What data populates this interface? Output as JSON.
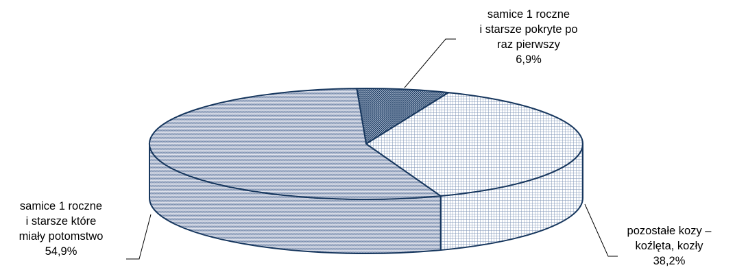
{
  "chart_data": {
    "type": "pie",
    "title": "",
    "categories": [
      "samice 1 roczne i starsze które miały potomstwo",
      "pozostałe kozy – koźlęta, kozły",
      "samice 1 roczne i starsze pokryte po raz pierwszy"
    ],
    "values": [
      54.9,
      38.2,
      6.9
    ],
    "unit": "%",
    "legend": "none",
    "labels": [
      {
        "lines": [
          "samice 1 roczne",
          "i starsze które",
          "miały potomstwo"
        ],
        "value_text": "54,9%"
      },
      {
        "lines": [
          "pozostałe kozy –",
          "koźlęta, kozły"
        ],
        "value_text": "38,2%"
      },
      {
        "lines": [
          "samice 1 roczne",
          "i starsze pokryte po",
          "raz pierwszy"
        ],
        "value_text": "6,9%"
      }
    ],
    "colors": [
      "#dcdce4",
      "#ffffff",
      "#a8b8cf"
    ],
    "edge_color": "#17375e"
  }
}
